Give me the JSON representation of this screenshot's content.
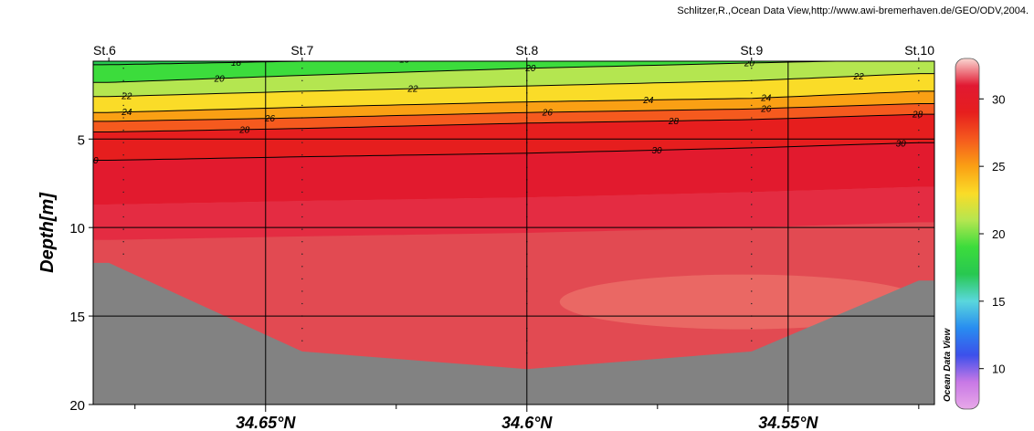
{
  "credit": "Schlitzer,R.,Ocean Data View,http://www.awi-bremerhaven.de/GEO/ODV,2004.",
  "watermark": "Ocean Data View",
  "chart_data": {
    "type": "heatmap",
    "title": "",
    "xlabel": "",
    "ylabel": "Depth[m]",
    "x_ticks": [
      {
        "lat": 34.65,
        "label": "34.65°N"
      },
      {
        "lat": 34.6,
        "label": "34.6°N"
      },
      {
        "lat": 34.55,
        "label": "34.55°N"
      }
    ],
    "xlim": [
      34.683,
      34.522
    ],
    "ylim": [
      0.6,
      20
    ],
    "y_ticks": [
      5,
      10,
      15,
      20
    ],
    "stations": [
      {
        "name": "St.6",
        "lat": 34.68
      },
      {
        "name": "St.7",
        "lat": 34.643
      },
      {
        "name": "St.8",
        "lat": 34.6
      },
      {
        "name": "St.9",
        "lat": 34.557
      },
      {
        "name": "St.10",
        "lat": 34.525
      }
    ],
    "bottom_depth": [
      12.0,
      17.0,
      18.0,
      17.0,
      13.0
    ],
    "colorbar": {
      "min": 7,
      "max": 33,
      "ticks": [
        10,
        15,
        20,
        25,
        30
      ]
    },
    "contours": [
      {
        "level": 18,
        "depths": [
          0.8,
          0.6,
          0.4,
          null,
          null
        ],
        "labels": [
          0.17,
          0.37
        ]
      },
      {
        "level": 20,
        "depths": [
          1.8,
          1.4,
          1.0,
          0.7,
          0.5
        ],
        "labels": [
          0.15,
          0.52,
          0.78
        ]
      },
      {
        "level": 22,
        "depths": [
          2.6,
          2.3,
          2.0,
          1.7,
          1.3
        ],
        "labels": [
          0.04,
          0.38,
          0.91
        ]
      },
      {
        "level": 24,
        "depths": [
          3.5,
          3.2,
          2.9,
          2.7,
          2.3
        ],
        "labels": [
          0.04,
          0.66,
          0.8
        ]
      },
      {
        "level": 26,
        "depths": [
          4.0,
          3.8,
          3.5,
          3.3,
          3.0
        ],
        "labels": [
          0.21,
          0.54,
          0.8
        ]
      },
      {
        "level": 28,
        "depths": [
          4.6,
          4.4,
          4.1,
          3.9,
          3.6
        ],
        "labels": [
          0.18,
          0.69,
          0.98
        ]
      },
      {
        "level": 30,
        "depths": [
          6.2,
          6.0,
          5.8,
          5.5,
          5.2
        ],
        "labels": [
          0.0,
          0.67,
          0.96
        ]
      }
    ]
  }
}
